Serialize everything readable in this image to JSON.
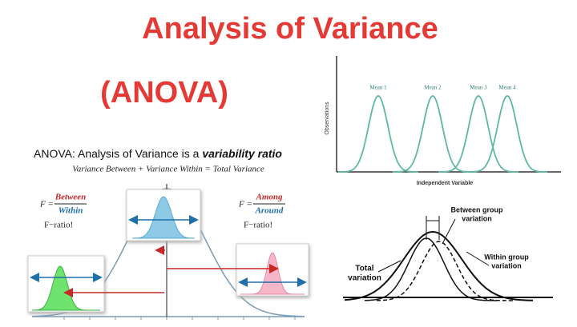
{
  "header": {
    "title": "Analysis of Variance",
    "subtitle": "(ANOVA)"
  },
  "left_panel": {
    "heading": "ANOVA: Analysis of Variance is a",
    "heading_emphasis": "variability ratio",
    "equation": "Variance Between + Variance Within = Total Variance",
    "formula_1": {
      "lhs": "F =",
      "numerator": "Between",
      "denominator": "Within",
      "note": "F−ratio!"
    },
    "formula_2": {
      "lhs": "F =",
      "numerator": "Among",
      "denominator": "Around",
      "note": "F−ratio!"
    }
  },
  "top_right": {
    "y_label": "Observations",
    "x_label": "Independent Variable",
    "curves": [
      "Mean 1",
      "Mean 2",
      "Mean 3",
      "Mean 4"
    ]
  },
  "bottom_right": {
    "between": [
      "Between group",
      "variation"
    ],
    "within": [
      "Within group",
      "variation"
    ],
    "total": [
      "Total",
      "variation"
    ]
  }
}
